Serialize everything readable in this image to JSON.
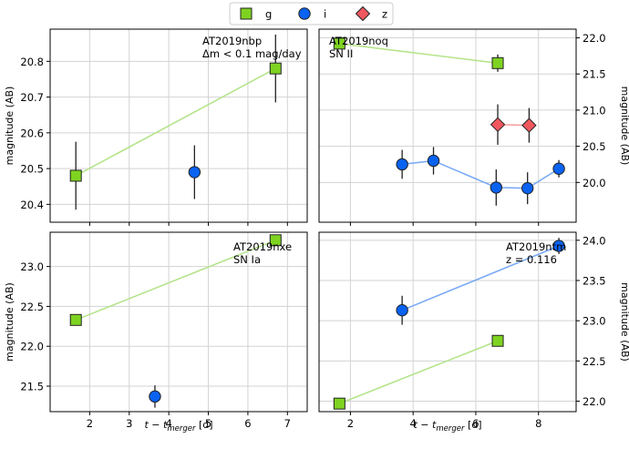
{
  "legend": {
    "items": [
      {
        "name": "g",
        "marker": "square",
        "color": "#7ed321"
      },
      {
        "name": "i",
        "marker": "circle",
        "color": "#0a62f0"
      },
      {
        "name": "z",
        "marker": "diamond",
        "color": "#f0585f"
      }
    ]
  },
  "colors": {
    "g_line": "#b4e48a",
    "i_line": "#7aaaf6",
    "z_line": "#f7a3a6",
    "grid": "#d3d3d3",
    "errorbar": "#222222"
  },
  "chart_data": [
    {
      "type": "scatter",
      "panel": "top-left",
      "annotation": [
        "AT2019nbp",
        "Δm < 0.1 mag/day"
      ],
      "xlabel": "",
      "ylabel": "magnitude (AB)",
      "xlim": [
        1.0,
        7.5
      ],
      "ylim": [
        20.89,
        20.35
      ],
      "y_inverted": true,
      "yaxis_side": "left",
      "xticks": [
        2,
        3,
        4,
        5,
        6,
        7
      ],
      "yticks": [
        20.4,
        20.5,
        20.6,
        20.7,
        20.8
      ],
      "ytick_labels": [
        "20.4",
        "20.5",
        "20.6",
        "20.7",
        "20.8"
      ],
      "show_xtick_labels": false,
      "series": [
        {
          "name": "g",
          "connected": true,
          "points": [
            {
              "x": 1.65,
              "y": 20.48,
              "err": 0.095
            },
            {
              "x": 6.7,
              "y": 20.78,
              "err": 0.095
            }
          ]
        },
        {
          "name": "i",
          "connected": false,
          "points": [
            {
              "x": 4.65,
              "y": 20.49,
              "err": 0.075
            }
          ]
        }
      ]
    },
    {
      "type": "scatter",
      "panel": "top-right",
      "annotation": [
        "AT2019noq",
        "SN II"
      ],
      "xlabel": "",
      "ylabel": "magnitude (AB)",
      "xlim": [
        1.0,
        9.2
      ],
      "ylim": [
        22.12,
        19.45
      ],
      "y_inverted": true,
      "yaxis_side": "right",
      "xticks": [
        2,
        4,
        6,
        8
      ],
      "yticks": [
        20.0,
        20.5,
        21.0,
        21.5,
        22.0
      ],
      "ytick_labels": [
        "20.0",
        "20.5",
        "21.0",
        "21.5",
        "22.0"
      ],
      "show_xtick_labels": false,
      "series": [
        {
          "name": "g",
          "connected": true,
          "points": [
            {
              "x": 1.65,
              "y": 21.92,
              "err": 0.07
            },
            {
              "x": 6.7,
              "y": 21.65,
              "err": 0.12
            }
          ]
        },
        {
          "name": "i",
          "connected": true,
          "points": [
            {
              "x": 3.65,
              "y": 20.25,
              "err": 0.2
            },
            {
              "x": 4.65,
              "y": 20.3,
              "err": 0.19
            },
            {
              "x": 6.65,
              "y": 19.93,
              "err": 0.25
            },
            {
              "x": 7.65,
              "y": 19.92,
              "err": 0.22
            },
            {
              "x": 8.65,
              "y": 20.19,
              "err": 0.12
            }
          ]
        },
        {
          "name": "z",
          "connected": true,
          "points": [
            {
              "x": 6.7,
              "y": 20.8,
              "err": 0.28
            },
            {
              "x": 7.7,
              "y": 20.79,
              "err": 0.24
            }
          ]
        }
      ]
    },
    {
      "type": "scatter",
      "panel": "bottom-left",
      "annotation": [
        "AT2019nxe",
        "SN Ia"
      ],
      "xlabel": "t − t_merger [d]",
      "ylabel": "magnitude (AB)",
      "xlim": [
        1.0,
        7.5
      ],
      "ylim": [
        23.43,
        21.18
      ],
      "y_inverted": true,
      "yaxis_side": "left",
      "xticks": [
        2,
        3,
        4,
        5,
        6,
        7
      ],
      "yticks": [
        21.5,
        22.0,
        22.5,
        23.0
      ],
      "ytick_labels": [
        "21.5",
        "22.0",
        "22.5",
        "23.0"
      ],
      "show_xtick_labels": true,
      "series": [
        {
          "name": "g",
          "connected": true,
          "points": [
            {
              "x": 1.65,
              "y": 22.33,
              "err": 0.03
            },
            {
              "x": 6.7,
              "y": 23.33,
              "err": 0.03
            }
          ]
        },
        {
          "name": "i",
          "connected": false,
          "points": [
            {
              "x": 3.65,
              "y": 21.37,
              "err": 0.14
            }
          ]
        }
      ]
    },
    {
      "type": "scatter",
      "panel": "bottom-right",
      "annotation": [
        "AT2019ntm",
        "z = 0.116"
      ],
      "xlabel": "t − t_merger [d]",
      "ylabel": "magnitude (AB)",
      "xlim": [
        1.0,
        9.2
      ],
      "ylim": [
        24.1,
        21.87
      ],
      "y_inverted": true,
      "yaxis_side": "right",
      "xticks": [
        2,
        4,
        6,
        8
      ],
      "yticks": [
        22.0,
        22.5,
        23.0,
        23.5,
        24.0
      ],
      "ytick_labels": [
        "22.0",
        "22.5",
        "23.0",
        "23.5",
        "24.0"
      ],
      "show_xtick_labels": true,
      "series": [
        {
          "name": "g",
          "connected": true,
          "points": [
            {
              "x": 1.65,
              "y": 21.97,
              "err": 0.03
            },
            {
              "x": 6.7,
              "y": 22.75,
              "err": 0.07
            }
          ]
        },
        {
          "name": "i",
          "connected": true,
          "points": [
            {
              "x": 3.65,
              "y": 23.13,
              "err": 0.18
            },
            {
              "x": 8.65,
              "y": 23.93,
              "err": 0.1
            }
          ]
        }
      ]
    }
  ]
}
